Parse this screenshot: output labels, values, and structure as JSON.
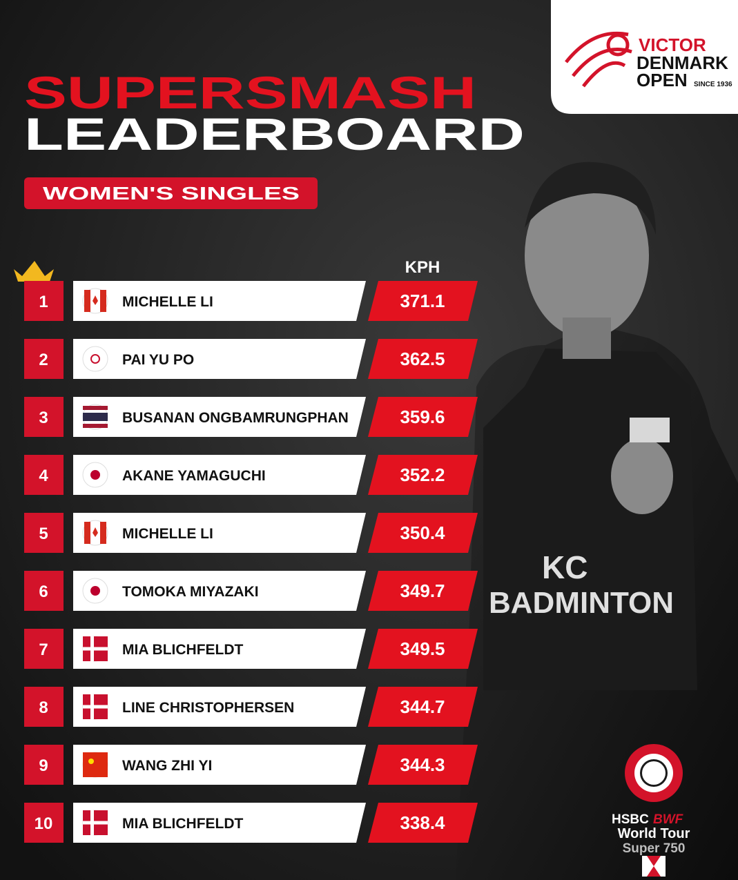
{
  "logo": {
    "brand": "VICTOR",
    "line1": "DENMARK",
    "line2": "OPEN",
    "since": "SINCE 1936"
  },
  "header": {
    "title_line1": "SUPERSMASH",
    "title_line2": "LEADERBOARD",
    "subtitle": "WOMEN'S SINGLES"
  },
  "table": {
    "speed_header": "KPH",
    "rows": [
      {
        "rank": 1,
        "name": "MICHELLE LI",
        "speed": 371.1
      },
      {
        "rank": 2,
        "name": "PAI YU PO",
        "speed": 362.5
      },
      {
        "rank": 3,
        "name": "BUSANAN ONGBAMRUNGPHAN",
        "speed": 359.6
      },
      {
        "rank": 4,
        "name": "AKANE YAMAGUCHI",
        "speed": 352.2
      },
      {
        "rank": 5,
        "name": "MICHELLE LI",
        "speed": 350.4
      },
      {
        "rank": 6,
        "name": "TOMOKA MIYAZAKI",
        "speed": 349.7
      },
      {
        "rank": 7,
        "name": "MIA BLICHFELDT",
        "speed": 349.5
      },
      {
        "rank": 8,
        "name": "LINE CHRISTOPHERSEN",
        "speed": 344.7
      },
      {
        "rank": 9,
        "name": "WANG ZHI YI",
        "speed": 344.3
      },
      {
        "rank": 10,
        "name": "MIA BLICHFELDT",
        "speed": 338.4
      }
    ]
  },
  "photo": {
    "shirt_line1": "KC",
    "shirt_line2": "BADMINTON"
  },
  "tour": {
    "sponsor": "HSBC",
    "federation": "BWF",
    "line1": "World Tour",
    "line2": "Super 750"
  }
}
